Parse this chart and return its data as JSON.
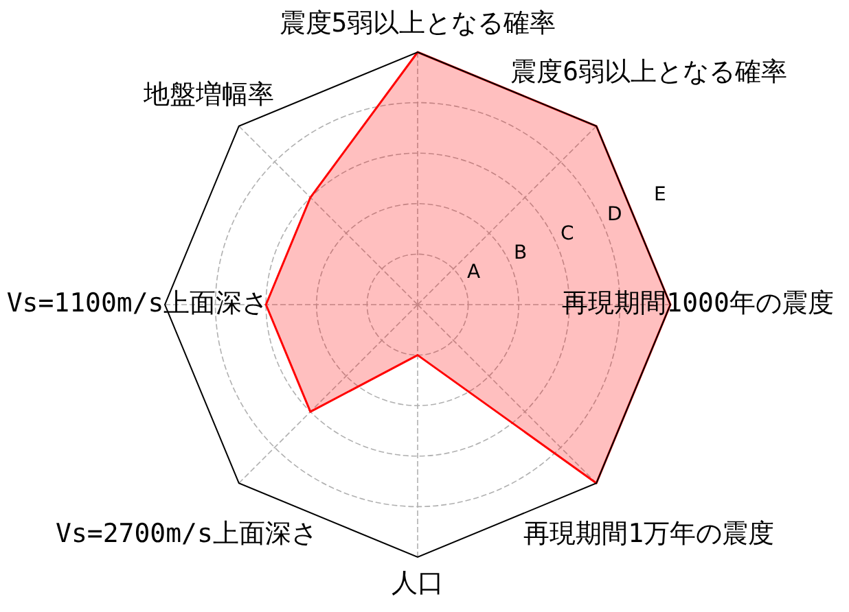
{
  "chart_data": {
    "type": "radar",
    "categories": [
      "震度5弱以上となる確率",
      "震度6弱以上となる確率",
      "再現期間1000年の震度",
      "再現期間1万年の震度",
      "人口",
      "Vs=2700m/s上面深さ",
      "Vs=1100m/s上面深さ",
      "地盤増幅率"
    ],
    "series": [
      {
        "color": "#ff0000",
        "values": [
          5,
          5,
          5,
          5,
          1,
          3,
          3,
          3
        ]
      }
    ],
    "ylim": [
      0,
      5
    ],
    "yticks": [
      {
        "value": 1,
        "label": "A"
      },
      {
        "value": 2,
        "label": "B"
      },
      {
        "value": 3,
        "label": "C"
      },
      {
        "value": 4,
        "label": "D"
      },
      {
        "value": 5,
        "label": "E"
      }
    ],
    "grid": true,
    "legend": false,
    "marker": "none"
  }
}
